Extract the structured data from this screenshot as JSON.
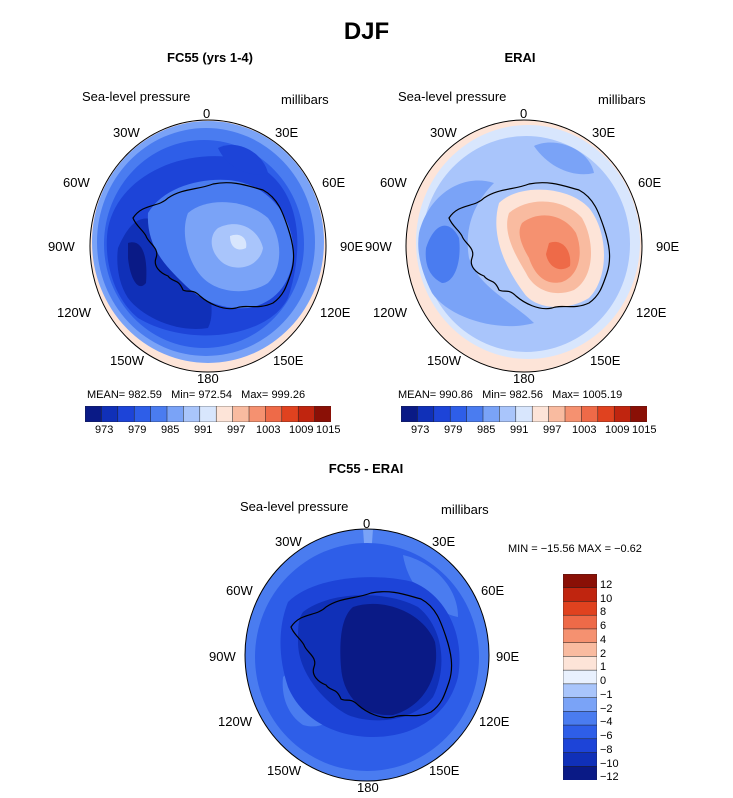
{
  "figure_title": "DJF",
  "colors_main": [
    "#0a1a86",
    "#1030b8",
    "#1d44d8",
    "#2e5ee8",
    "#4a7cf0",
    "#7aa3f7",
    "#a9c5fb",
    "#d8e6fd",
    "#fde4d8",
    "#f9bba0",
    "#f59170",
    "#ee6a48",
    "#e0421f",
    "#c0250f",
    "#8a1006"
  ],
  "colors_diff": [
    "#0a1a86",
    "#1030b8",
    "#1d44d8",
    "#2e5ee8",
    "#4a7cf0",
    "#7aa3f7",
    "#a9c5fb",
    "#e9f1fe",
    "#fde4d8",
    "#f9bba0",
    "#f59170",
    "#ee6a48",
    "#e0421f",
    "#c0250f",
    "#8a1006"
  ],
  "panels": [
    {
      "id": "fc55",
      "title": "FC55 (yrs 1-4)",
      "field_label": "Sea-level pressure",
      "units": "millibars",
      "lon_labels": [
        "0",
        "30E",
        "60E",
        "90E",
        "120E",
        "150E",
        "180",
        "150W",
        "120W",
        "90W",
        "60W",
        "30W"
      ],
      "stats": {
        "mean_label": "MEAN=",
        "mean": "982.59",
        "min_label": "Min=",
        "min": "972.54",
        "max_label": "Max=",
        "max": "999.26"
      },
      "colorbar_ticks": [
        "973",
        "979",
        "985",
        "991",
        "997",
        "1003",
        "1009",
        "1015"
      ]
    },
    {
      "id": "erai",
      "title": "ERAI",
      "field_label": "Sea-level pressure",
      "units": "millibars",
      "lon_labels": [
        "0",
        "30E",
        "60E",
        "90E",
        "120E",
        "150E",
        "180",
        "150W",
        "120W",
        "90W",
        "60W",
        "30W"
      ],
      "stats": {
        "mean_label": "MEAN=",
        "mean": "990.86",
        "min_label": "Min=",
        "min": "982.56",
        "max_label": "Max=",
        "max": "1005.19"
      },
      "colorbar_ticks": [
        "973",
        "979",
        "985",
        "991",
        "997",
        "1003",
        "1009",
        "1015"
      ]
    },
    {
      "id": "diff",
      "title": "FC55 - ERAI",
      "field_label": "Sea-level pressure",
      "units": "millibars",
      "lon_labels": [
        "0",
        "30E",
        "60E",
        "90E",
        "120E",
        "150E",
        "180",
        "150W",
        "120W",
        "90W",
        "60W",
        "30W"
      ],
      "minmax_text": "MIN = −15.56 MAX =  −0.62",
      "colorbar_ticks": [
        "12",
        "10",
        "8",
        "6",
        "4",
        "2",
        "1",
        "0",
        "−1",
        "−2",
        "−4",
        "−6",
        "−8",
        "−10",
        "−12"
      ]
    }
  ]
}
